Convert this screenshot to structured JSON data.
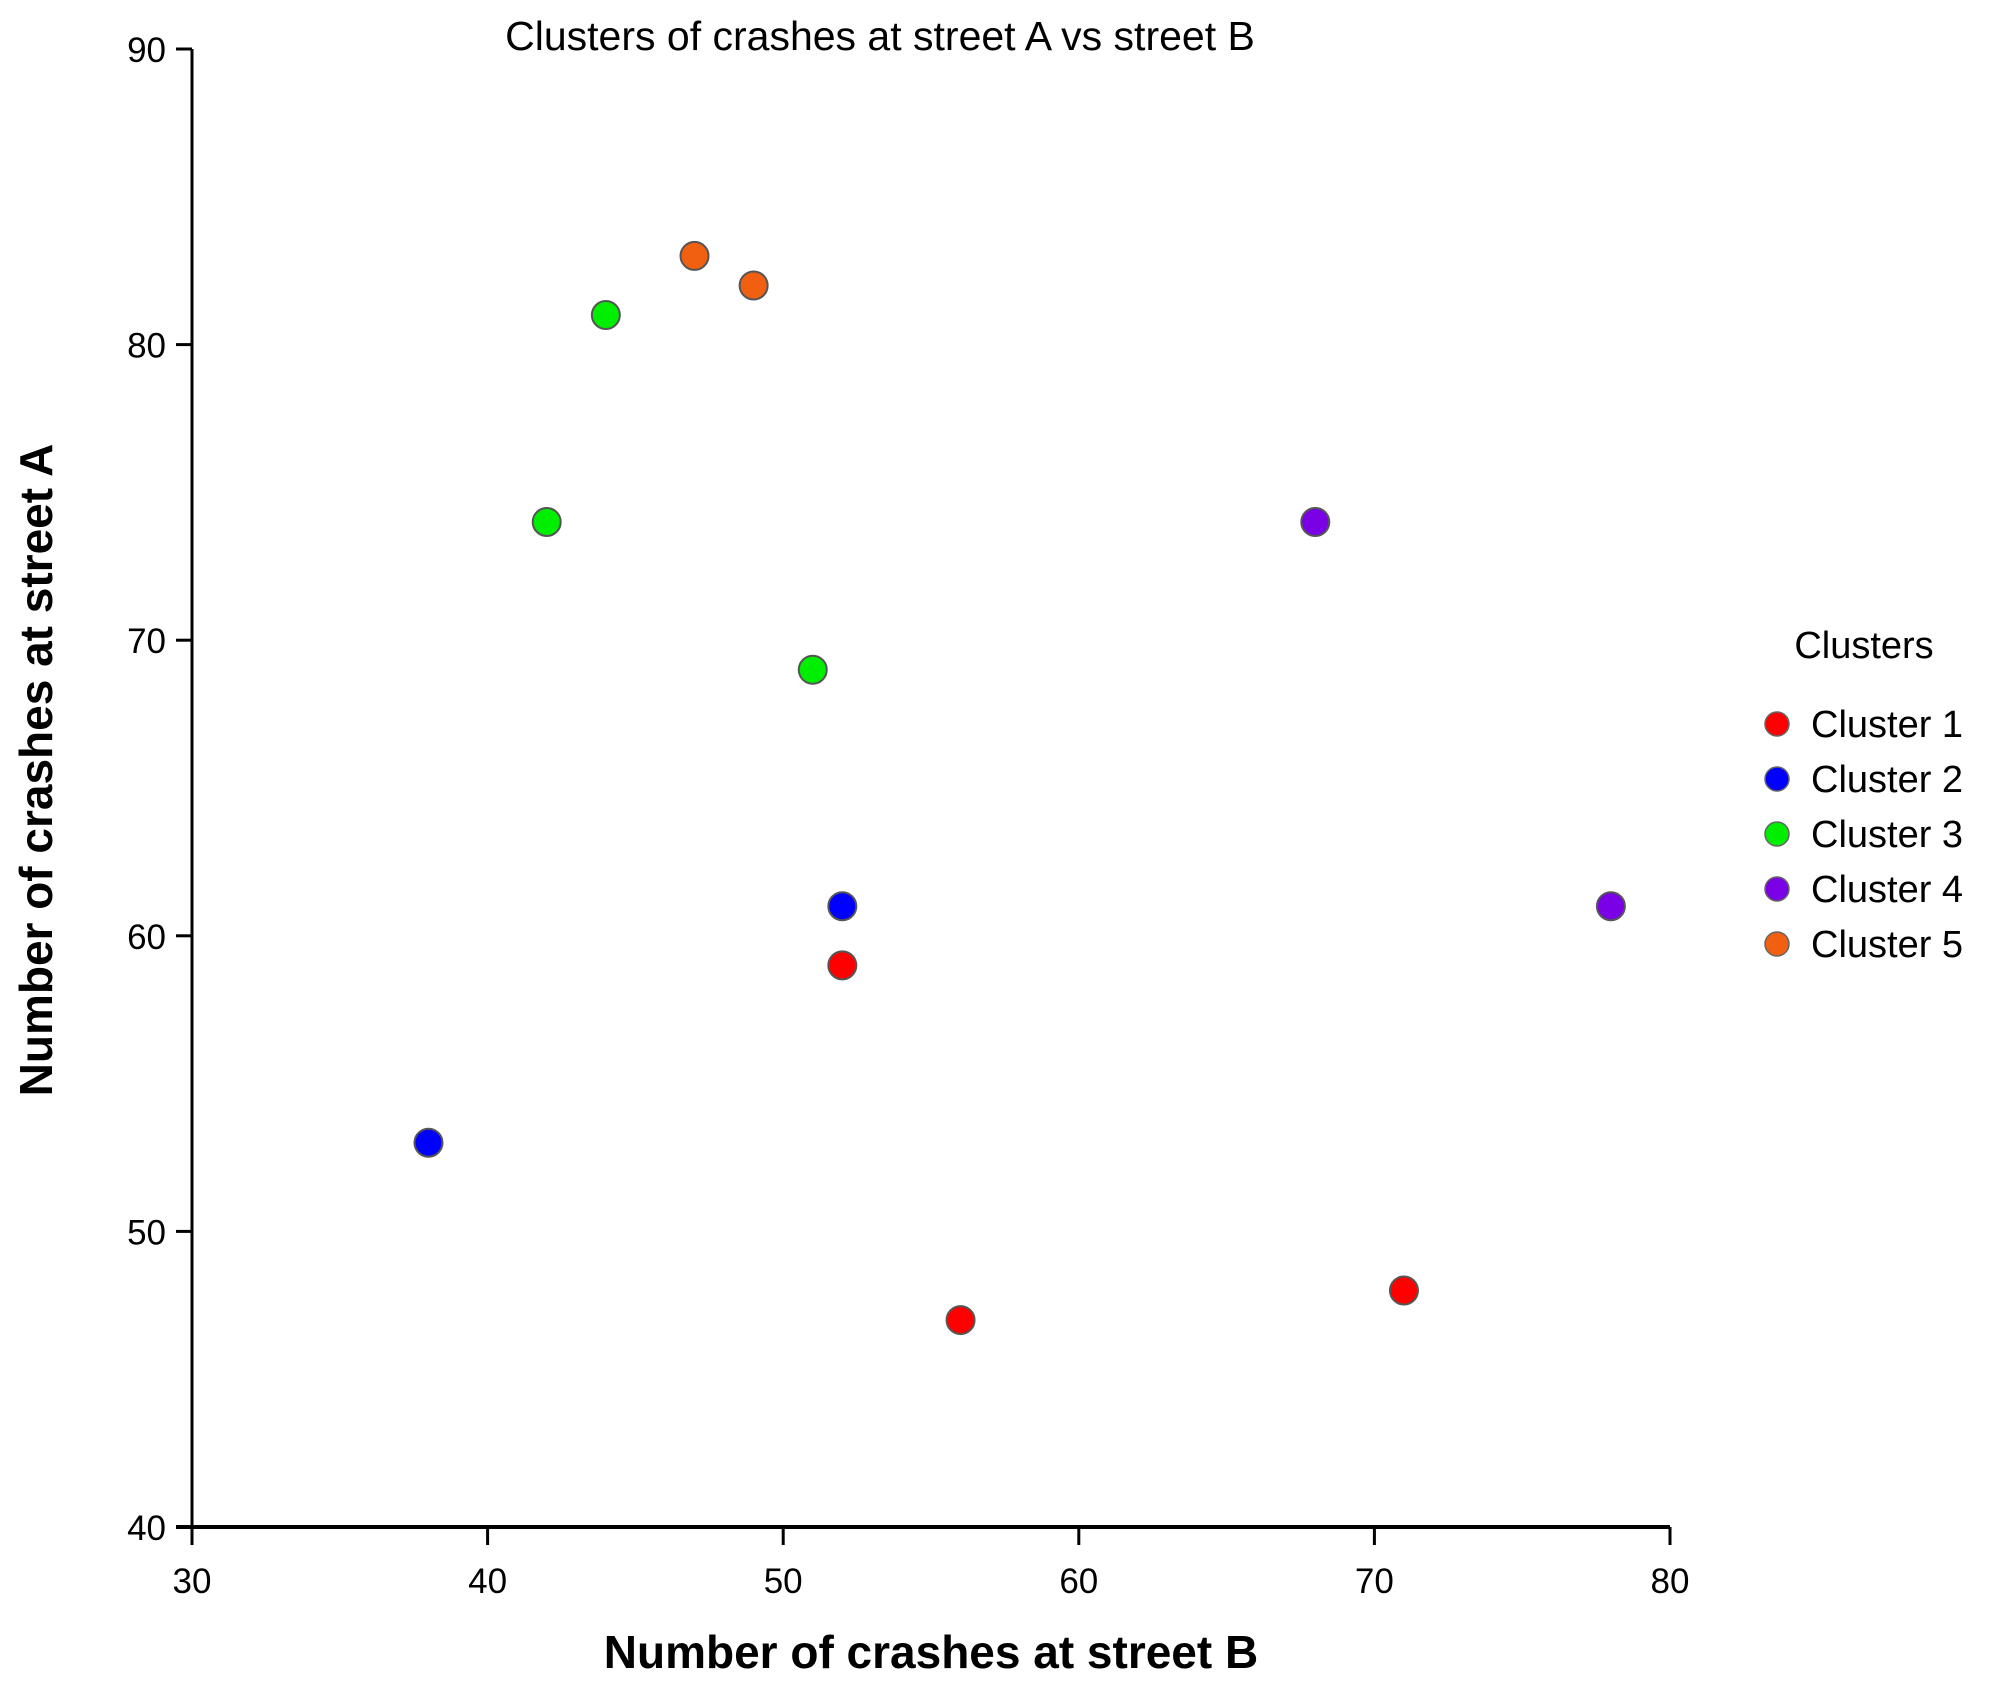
{
  "chart_data": {
    "type": "scatter",
    "title": "Clusters of crashes at street A vs street B",
    "xlabel": "Number of crashes at street B",
    "ylabel": "Number of crashes at street A",
    "xlim": [
      30,
      80
    ],
    "ylim": [
      40,
      90
    ],
    "xticks": [
      "30",
      "40",
      "50",
      "60",
      "70",
      "80"
    ],
    "yticks": [
      "40",
      "50",
      "60",
      "70",
      "80",
      "90"
    ],
    "grid": false,
    "legend": {
      "title": "Clusters",
      "placement": "right"
    },
    "series": [
      {
        "name": "Cluster 1",
        "color": "#ff0000",
        "points": [
          [
            52,
            59
          ],
          [
            56,
            47
          ],
          [
            71,
            48
          ]
        ]
      },
      {
        "name": "Cluster 2",
        "color": "#0000ff",
        "points": [
          [
            38,
            53
          ],
          [
            52,
            61
          ]
        ]
      },
      {
        "name": "Cluster 3",
        "color": "#00ee00",
        "points": [
          [
            42,
            74
          ],
          [
            44,
            81
          ],
          [
            51,
            69
          ]
        ]
      },
      {
        "name": "Cluster 4",
        "color": "#7a00e6",
        "points": [
          [
            68,
            74
          ],
          [
            78,
            61
          ]
        ]
      },
      {
        "name": "Cluster 5",
        "color": "#f06010",
        "points": [
          [
            47,
            83
          ],
          [
            49,
            82
          ]
        ]
      }
    ]
  }
}
